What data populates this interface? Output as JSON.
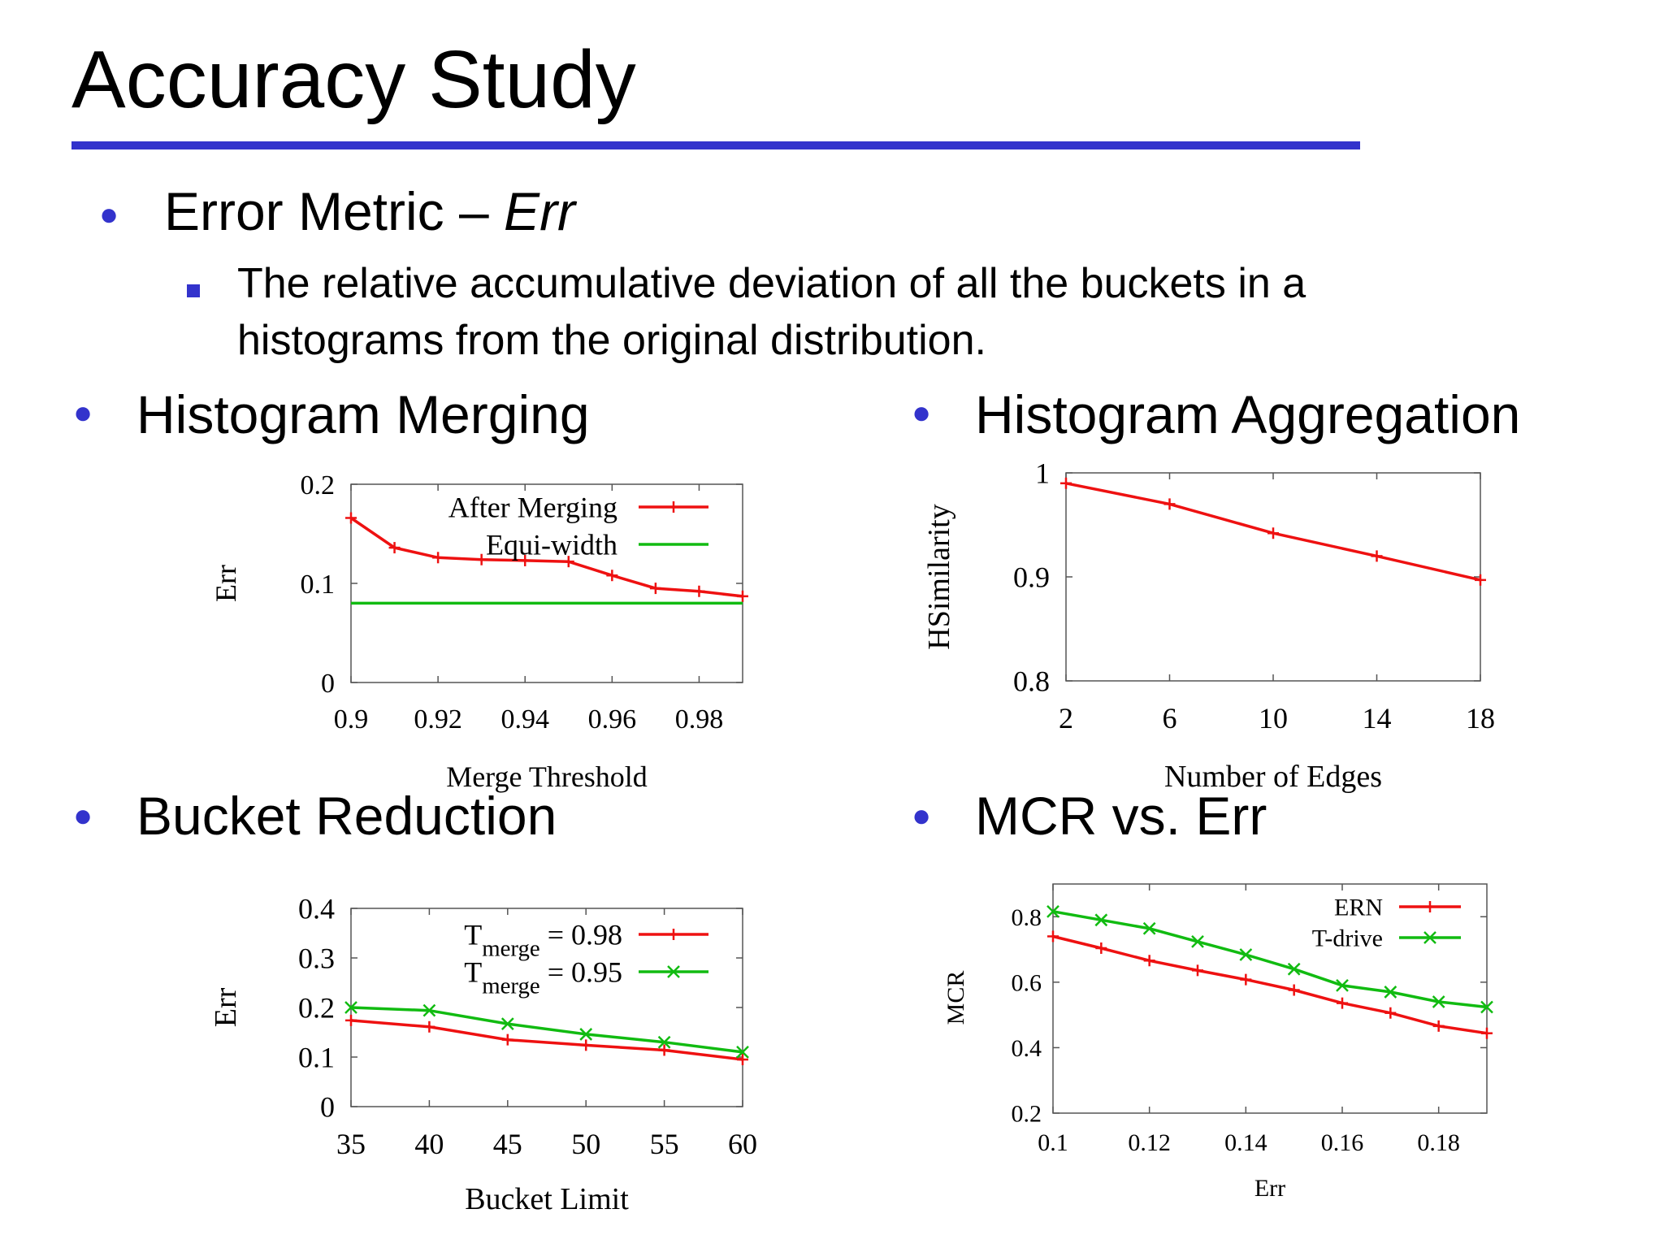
{
  "slide": {
    "title": "Accuracy Study",
    "bullet1": {
      "label": "Error Metric – ",
      "emph": "Err"
    },
    "sub1": {
      "line1": "The relative accumulative deviation of all the buckets in a",
      "line2": "histograms from the original distribution."
    },
    "heading_merging": "Histogram Merging",
    "heading_aggregation": "Histogram Aggregation",
    "heading_bucket": "Bucket Reduction",
    "heading_mcr": "MCR vs. Err"
  },
  "colors": {
    "accent": "#3333cc",
    "red": "#ee1111",
    "green": "#11bb11"
  },
  "chart_data": [
    {
      "id": "merging",
      "type": "line",
      "xlabel": "Merge Threshold",
      "ylabel": "Err",
      "xlim": [
        0.9,
        0.99
      ],
      "ylim": [
        0,
        0.2
      ],
      "xticks": [
        {
          "v": 0.9,
          "label": "0.9"
        },
        {
          "v": 0.92,
          "label": "0.92"
        },
        {
          "v": 0.94,
          "label": "0.94"
        },
        {
          "v": 0.96,
          "label": "0.96"
        },
        {
          "v": 0.98,
          "label": "0.98"
        }
      ],
      "yticks": [
        {
          "v": 0,
          "label": "0"
        },
        {
          "v": 0.1,
          "label": "0.1"
        },
        {
          "v": 0.2,
          "label": "0.2"
        }
      ],
      "legend_position": "top-right",
      "series": [
        {
          "name": "After Merging",
          "color": "#ee1111",
          "marker": "plus",
          "x": [
            0.9,
            0.91,
            0.92,
            0.93,
            0.94,
            0.95,
            0.96,
            0.97,
            0.98,
            0.99
          ],
          "y": [
            0.166,
            0.136,
            0.126,
            0.124,
            0.123,
            0.122,
            0.108,
            0.095,
            0.092,
            0.087
          ]
        },
        {
          "name": "Equi-width",
          "color": "#11bb11",
          "marker": "none",
          "x": [
            0.9,
            0.99
          ],
          "y": [
            0.08,
            0.08
          ]
        }
      ]
    },
    {
      "id": "aggregation",
      "type": "line",
      "xlabel": "Number of Edges",
      "ylabel": "HSimilarity",
      "xlim": [
        2,
        18
      ],
      "ylim": [
        0.8,
        1
      ],
      "xticks": [
        {
          "v": 2,
          "label": "2"
        },
        {
          "v": 6,
          "label": "6"
        },
        {
          "v": 10,
          "label": "10"
        },
        {
          "v": 14,
          "label": "14"
        },
        {
          "v": 18,
          "label": "18"
        }
      ],
      "yticks": [
        {
          "v": 0.8,
          "label": "0.8"
        },
        {
          "v": 0.9,
          "label": "0.9"
        },
        {
          "v": 1,
          "label": "1"
        }
      ],
      "series": [
        {
          "color": "#ee1111",
          "marker": "plus",
          "x": [
            2,
            6,
            10,
            14,
            18
          ],
          "y": [
            0.99,
            0.97,
            0.942,
            0.92,
            0.897
          ]
        }
      ]
    },
    {
      "id": "bucket",
      "type": "line",
      "xlabel": "Bucket Limit",
      "ylabel": "Err",
      "xlim": [
        35,
        60
      ],
      "ylim": [
        0,
        0.4
      ],
      "xticks": [
        {
          "v": 35,
          "label": "35"
        },
        {
          "v": 40,
          "label": "40"
        },
        {
          "v": 45,
          "label": "45"
        },
        {
          "v": 50,
          "label": "50"
        },
        {
          "v": 55,
          "label": "55"
        },
        {
          "v": 60,
          "label": "60"
        }
      ],
      "yticks": [
        {
          "v": 0,
          "label": "0"
        },
        {
          "v": 0.1,
          "label": "0.1"
        },
        {
          "v": 0.2,
          "label": "0.2"
        },
        {
          "v": 0.3,
          "label": "0.3"
        },
        {
          "v": 0.4,
          "label": "0.4"
        }
      ],
      "legend_position": "top-right",
      "series": [
        {
          "name": "T_merge = 0.98",
          "legend_main": "T",
          "legend_sub": "merge",
          "legend_value": " = 0.98",
          "color": "#ee1111",
          "marker": "plus",
          "x": [
            35,
            40,
            45,
            50,
            55,
            60
          ],
          "y": [
            0.174,
            0.161,
            0.135,
            0.124,
            0.114,
            0.095
          ]
        },
        {
          "name": "T_merge = 0.95",
          "legend_main": "T",
          "legend_sub": "merge",
          "legend_value": " = 0.95",
          "color": "#11bb11",
          "marker": "cross",
          "x": [
            35,
            40,
            45,
            50,
            55,
            60
          ],
          "y": [
            0.2,
            0.194,
            0.167,
            0.146,
            0.13,
            0.11
          ]
        }
      ]
    },
    {
      "id": "mcr",
      "type": "line",
      "xlabel": "Err",
      "ylabel": "MCR",
      "xlim": [
        0.1,
        0.19
      ],
      "ylim": [
        0.2,
        0.9
      ],
      "xticks": [
        {
          "v": 0.1,
          "label": "0.1"
        },
        {
          "v": 0.12,
          "label": "0.12"
        },
        {
          "v": 0.14,
          "label": "0.14"
        },
        {
          "v": 0.16,
          "label": "0.16"
        },
        {
          "v": 0.18,
          "label": "0.18"
        }
      ],
      "yticks": [
        {
          "v": 0.2,
          "label": "0.2"
        },
        {
          "v": 0.4,
          "label": "0.4"
        },
        {
          "v": 0.6,
          "label": "0.6"
        },
        {
          "v": 0.8,
          "label": "0.8"
        }
      ],
      "legend_position": "top-right",
      "series": [
        {
          "name": "ERN",
          "color": "#ee1111",
          "marker": "plus",
          "x": [
            0.1,
            0.11,
            0.12,
            0.13,
            0.14,
            0.15,
            0.16,
            0.17,
            0.18,
            0.19
          ],
          "y": [
            0.74,
            0.704,
            0.666,
            0.636,
            0.608,
            0.576,
            0.536,
            0.506,
            0.466,
            0.444
          ]
        },
        {
          "name": "T-drive",
          "color": "#11bb11",
          "marker": "cross",
          "x": [
            0.1,
            0.11,
            0.12,
            0.13,
            0.14,
            0.15,
            0.16,
            0.17,
            0.18,
            0.19
          ],
          "y": [
            0.816,
            0.79,
            0.764,
            0.724,
            0.684,
            0.64,
            0.59,
            0.57,
            0.54,
            0.524
          ]
        }
      ]
    }
  ]
}
